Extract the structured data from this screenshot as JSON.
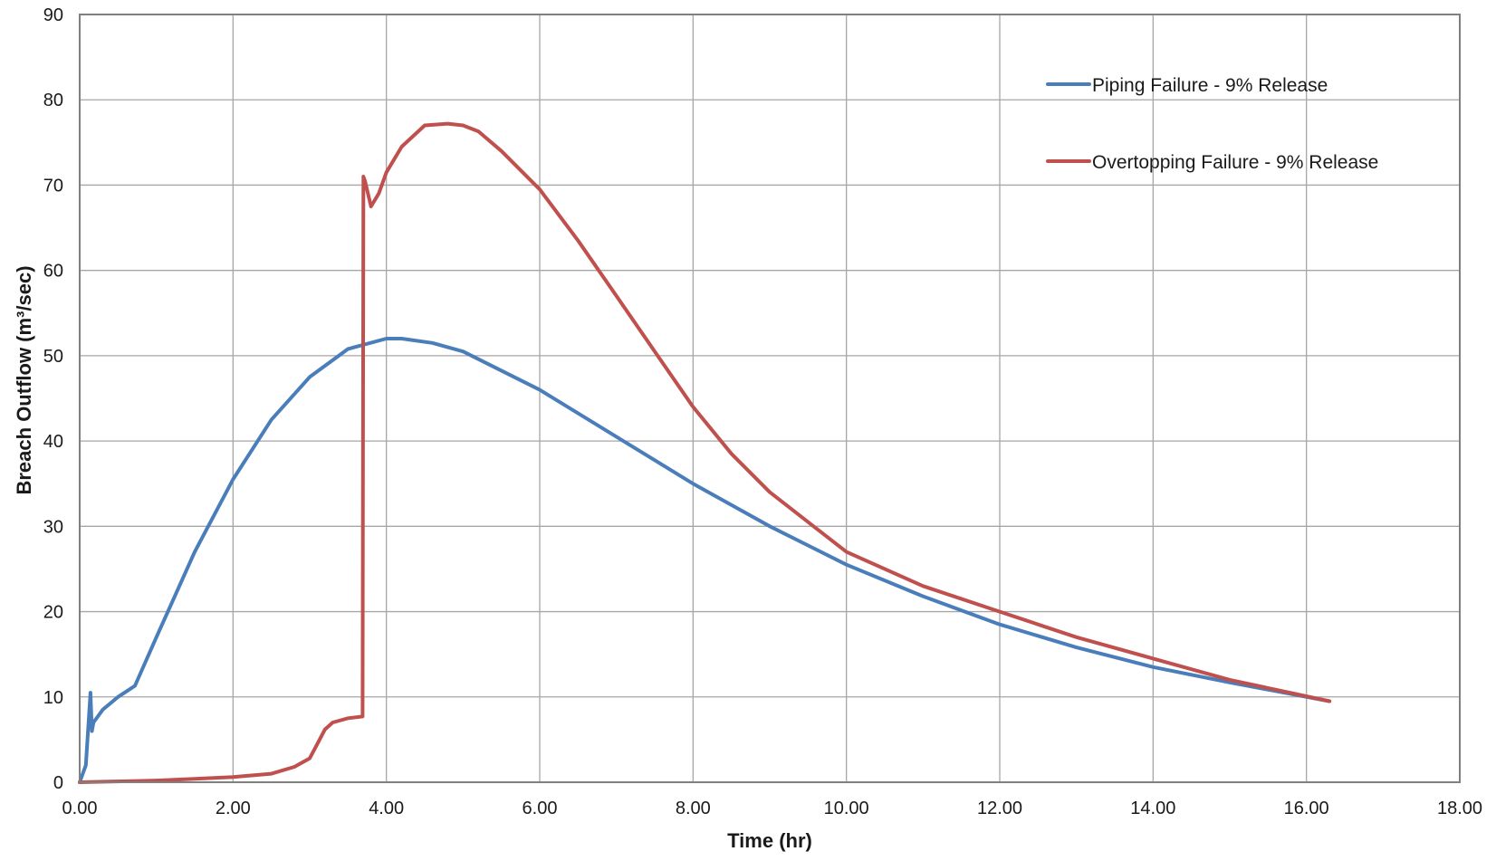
{
  "chart_data": {
    "type": "line",
    "title": "",
    "xlabel": "Time (hr)",
    "ylabel": "Breach Outflow (m³/sec)",
    "xlim": [
      0,
      18
    ],
    "ylim": [
      0,
      90
    ],
    "x_ticks": [
      0,
      2,
      4,
      6,
      8,
      10,
      12,
      14,
      16,
      18
    ],
    "x_tick_labels": [
      "0.00",
      "2.00",
      "4.00",
      "6.00",
      "8.00",
      "10.00",
      "12.00",
      "14.00",
      "16.00",
      "18.00"
    ],
    "y_ticks": [
      0,
      10,
      20,
      30,
      40,
      50,
      60,
      70,
      80,
      90
    ],
    "y_tick_labels": [
      "0",
      "10",
      "20",
      "30",
      "40",
      "50",
      "60",
      "70",
      "80",
      "90"
    ],
    "grid": true,
    "legend_position": "top-right",
    "series": [
      {
        "name": "Piping Failure - 9% Release",
        "color": "#4a7ebb",
        "x": [
          0.0,
          0.08,
          0.14,
          0.16,
          0.18,
          0.3,
          0.5,
          0.72,
          1.0,
          1.5,
          2.0,
          2.5,
          3.0,
          3.5,
          4.0,
          4.2,
          4.6,
          5.0,
          6.0,
          7.0,
          8.0,
          9.0,
          10.0,
          11.0,
          12.0,
          13.0,
          14.0,
          15.0,
          16.3
        ],
        "y": [
          0.0,
          2.0,
          10.5,
          6.0,
          7.0,
          8.5,
          10.0,
          11.3,
          17.0,
          27.0,
          35.5,
          42.5,
          47.5,
          50.8,
          52.0,
          52.0,
          51.5,
          50.5,
          46.0,
          40.5,
          35.0,
          30.0,
          25.5,
          21.8,
          18.5,
          15.8,
          13.5,
          11.7,
          9.5
        ]
      },
      {
        "name": "Overtopping Failure - 9% Release",
        "color": "#c0504d",
        "x": [
          0.0,
          0.5,
          1.0,
          1.5,
          2.0,
          2.5,
          2.8,
          3.0,
          3.1,
          3.2,
          3.3,
          3.5,
          3.69,
          3.7,
          3.72,
          3.8,
          3.9,
          4.0,
          4.2,
          4.5,
          4.8,
          5.0,
          5.2,
          5.5,
          6.0,
          6.5,
          7.0,
          7.5,
          8.0,
          8.5,
          9.0,
          10.0,
          11.0,
          12.0,
          13.0,
          14.0,
          15.0,
          16.3
        ],
        "y": [
          0.0,
          0.1,
          0.2,
          0.4,
          0.6,
          1.0,
          1.8,
          2.8,
          4.5,
          6.2,
          7.0,
          7.5,
          7.7,
          71.0,
          70.5,
          67.5,
          69.0,
          71.5,
          74.5,
          77.0,
          77.2,
          77.0,
          76.3,
          74.0,
          69.5,
          63.5,
          57.0,
          50.5,
          44.0,
          38.5,
          34.0,
          27.0,
          23.0,
          20.0,
          17.0,
          14.5,
          12.0,
          9.5
        ]
      }
    ]
  }
}
